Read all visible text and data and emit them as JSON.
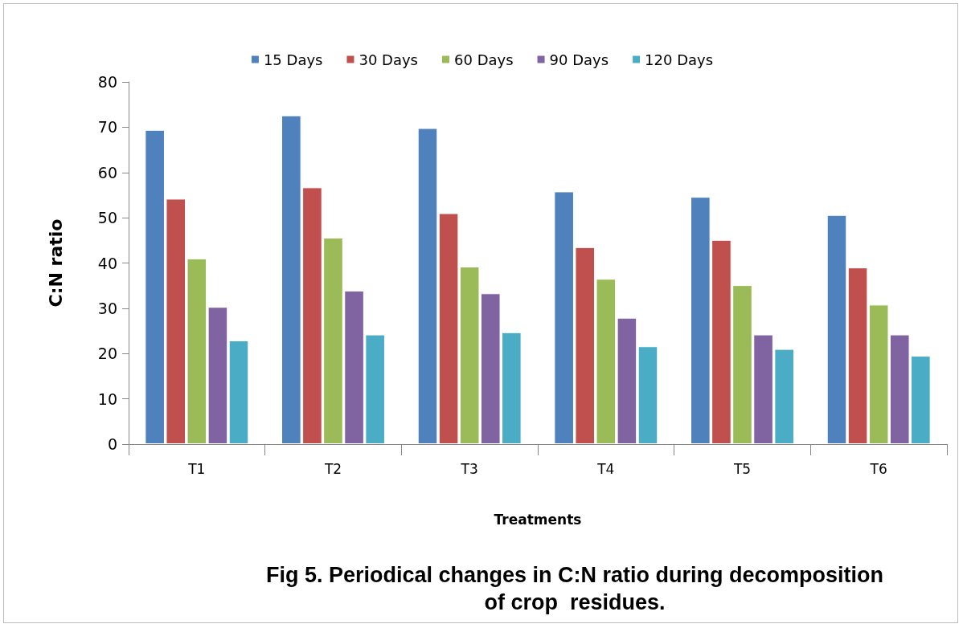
{
  "chart_data": {
    "type": "bar",
    "title": "Fig 5. Periodical changes in C:N ratio during decomposition\nof crop  residues.",
    "xlabel": "Treatments",
    "ylabel": "C:N ratio",
    "categories": [
      "T1",
      "T2",
      "T3",
      "T4",
      "T5",
      "T6"
    ],
    "series": [
      {
        "name": "15 Days",
        "color": "#4f81bd",
        "values": [
          69.4,
          72.6,
          69.8,
          55.8,
          54.6,
          50.6
        ]
      },
      {
        "name": "30 Days",
        "color": "#c0504d",
        "values": [
          54.2,
          56.7,
          51.0,
          43.5,
          45.1,
          39.0
        ]
      },
      {
        "name": "60 Days",
        "color": "#9bbb59",
        "values": [
          41.0,
          45.6,
          39.2,
          36.5,
          35.1,
          30.8
        ]
      },
      {
        "name": "90 Days",
        "color": "#8064a2",
        "values": [
          30.3,
          33.9,
          33.3,
          27.9,
          24.2,
          24.2
        ]
      },
      {
        "name": "120 Days",
        "color": "#4bacc6",
        "values": [
          22.9,
          24.2,
          24.7,
          21.6,
          21.0,
          19.5
        ]
      }
    ],
    "ylim": [
      0,
      80
    ],
    "yticks": [
      0,
      10,
      20,
      30,
      40,
      50,
      60,
      70,
      80
    ],
    "grid": false,
    "legend": "top"
  }
}
